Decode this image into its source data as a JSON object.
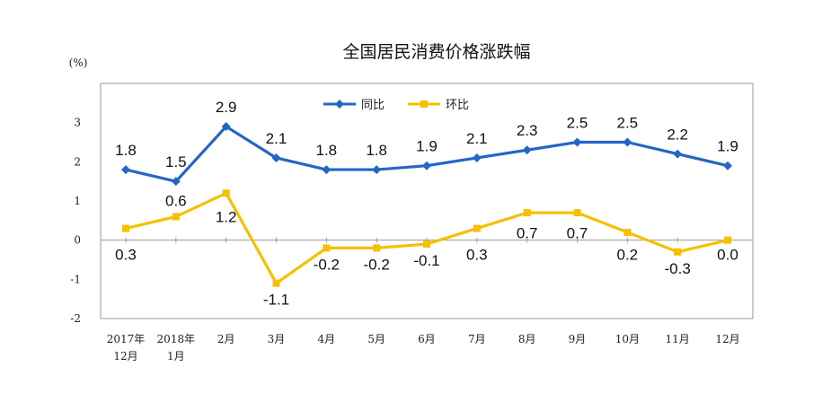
{
  "chart_data": {
    "type": "line",
    "title": "全国居民消费价格涨跌幅",
    "unit_label": "(%)",
    "categories": [
      [
        "2017年",
        "12月"
      ],
      [
        "2018年",
        "1月"
      ],
      [
        "2月"
      ],
      [
        "3月"
      ],
      [
        "4月"
      ],
      [
        "5月"
      ],
      [
        "6月"
      ],
      [
        "7月"
      ],
      [
        "8月"
      ],
      [
        "9月"
      ],
      [
        "10月"
      ],
      [
        "11月"
      ],
      [
        "12月"
      ]
    ],
    "ylim": [
      -2,
      4
    ],
    "yticks": [
      -2,
      -1,
      0,
      1,
      2,
      3
    ],
    "grid": false,
    "legend_position": "top-center",
    "series": [
      {
        "name": "同比",
        "color": "#2466C4",
        "marker": "diamond",
        "values": [
          1.8,
          1.5,
          2.9,
          2.1,
          1.8,
          1.8,
          1.9,
          2.1,
          2.3,
          2.5,
          2.5,
          2.2,
          1.9
        ],
        "labels": [
          "1.8",
          "1.5",
          "2.9",
          "2.1",
          "1.8",
          "1.8",
          "1.9",
          "2.1",
          "2.3",
          "2.5",
          "2.5",
          "2.2",
          "1.9"
        ]
      },
      {
        "name": "环比",
        "color": "#F5C000",
        "marker": "square",
        "values": [
          0.3,
          0.6,
          1.2,
          -1.1,
          -0.2,
          -0.2,
          -0.1,
          0.3,
          0.7,
          0.7,
          0.2,
          -0.3,
          0.0
        ],
        "labels": [
          "0.3",
          "0.6",
          "1.2",
          "-1.1",
          "-0.2",
          "-0.2",
          "-0.1",
          "0.3",
          "0.7",
          "0.7",
          "0.2",
          "-0.3",
          "0.0"
        ]
      }
    ]
  }
}
